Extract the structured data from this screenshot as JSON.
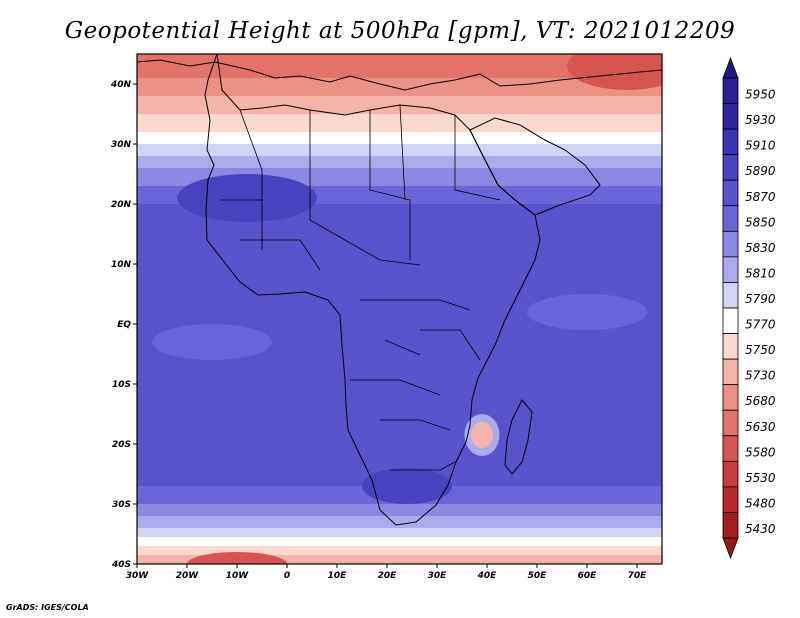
{
  "title": "Geopotential Height at 500hPa [gpm], VT: 2021012209",
  "credit": "GrADS: IGES/COLA",
  "map": {
    "lon_range": [
      -30,
      75
    ],
    "lat_range": [
      -40,
      45
    ],
    "lon_ticks": [
      {
        "value": -30,
        "label": "30W"
      },
      {
        "value": -20,
        "label": "20W"
      },
      {
        "value": -10,
        "label": "10W"
      },
      {
        "value": 0,
        "label": "0"
      },
      {
        "value": 10,
        "label": "10E"
      },
      {
        "value": 20,
        "label": "20E"
      },
      {
        "value": 30,
        "label": "30E"
      },
      {
        "value": 40,
        "label": "40E"
      },
      {
        "value": 50,
        "label": "50E"
      },
      {
        "value": 60,
        "label": "60E"
      },
      {
        "value": 70,
        "label": "70E"
      }
    ],
    "lat_ticks": [
      {
        "value": 40,
        "label": "40N"
      },
      {
        "value": 30,
        "label": "30N"
      },
      {
        "value": 20,
        "label": "20N"
      },
      {
        "value": 10,
        "label": "10N"
      },
      {
        "value": 0,
        "label": "EQ"
      },
      {
        "value": -10,
        "label": "10S"
      },
      {
        "value": -20,
        "label": "20S"
      },
      {
        "value": -30,
        "label": "30S"
      },
      {
        "value": -40,
        "label": "40S"
      }
    ],
    "field_bands": [
      {
        "lat": 45,
        "level": 5630
      },
      {
        "lat": 41,
        "level": 5680
      },
      {
        "lat": 38,
        "level": 5730
      },
      {
        "lat": 35,
        "level": 5750
      },
      {
        "lat": 32,
        "level": 5770
      },
      {
        "lat": 30,
        "level": 5790
      },
      {
        "lat": 28,
        "level": 5810
      },
      {
        "lat": 26,
        "level": 5830
      },
      {
        "lat": 23,
        "level": 5850
      },
      {
        "lat": 20,
        "level": 5870
      },
      {
        "lat": 16,
        "level": 5870
      },
      {
        "lat": 12,
        "level": 5870
      },
      {
        "lat": 6,
        "level": 5870
      },
      {
        "lat": 0,
        "level": 5870
      },
      {
        "lat": -8,
        "level": 5870
      },
      {
        "lat": -16,
        "level": 5870
      },
      {
        "lat": -22,
        "level": 5870
      },
      {
        "lat": -27,
        "level": 5850
      },
      {
        "lat": -30,
        "level": 5830
      },
      {
        "lat": -32,
        "level": 5810
      },
      {
        "lat": -34,
        "level": 5790
      },
      {
        "lat": -35.5,
        "level": 5770
      },
      {
        "lat": -37,
        "level": 5750
      },
      {
        "lat": -38.5,
        "level": 5730
      },
      {
        "lat": -40,
        "level": 5680
      }
    ],
    "features": [
      {
        "name": "North Africa heights 5890",
        "lon": -8,
        "lat": 21,
        "rx_deg": 14,
        "ry_deg": 4,
        "level": 5890
      },
      {
        "name": "Southern Africa heights 5890",
        "lon": 24,
        "lat": -27,
        "rx_deg": 9,
        "ry_deg": 3,
        "level": 5890
      },
      {
        "name": "Mozambique Channel cutoff low center",
        "lon": 39,
        "lat": -18.5,
        "rx_deg": 2.2,
        "ry_deg": 2.2,
        "level": 5730
      },
      {
        "name": "Mozambique Channel cutoff low ring",
        "lon": 39,
        "lat": -18.5,
        "rx_deg": 3.5,
        "ry_deg": 3.5,
        "level": 5810
      },
      {
        "name": "Northeast low heights",
        "lon": 68,
        "lat": 43,
        "rx_deg": 12,
        "ry_deg": 4,
        "level": 5580
      },
      {
        "name": "South Atlantic low heights",
        "lon": -10,
        "lat": -40,
        "rx_deg": 10,
        "ry_deg": 2,
        "level": 5580
      },
      {
        "name": "Equatorial Indian Ocean 5850",
        "lon": 60,
        "lat": 2,
        "rx_deg": 12,
        "ry_deg": 3,
        "level": 5850
      },
      {
        "name": "Equatorial Atlantic 5850",
        "lon": -15,
        "lat": -3,
        "rx_deg": 12,
        "ry_deg": 3,
        "level": 5850
      }
    ]
  },
  "colorbar": [
    {
      "level": 5950,
      "color": "#2a1f96"
    },
    {
      "level": 5930,
      "color": "#3025a3"
    },
    {
      "level": 5910,
      "color": "#3a35b4"
    },
    {
      "level": 5890,
      "color": "#4842c0"
    },
    {
      "level": 5870,
      "color": "#5852cd"
    },
    {
      "level": 5850,
      "color": "#6a66d9"
    },
    {
      "level": 5830,
      "color": "#8a88e3"
    },
    {
      "level": 5810,
      "color": "#ababed"
    },
    {
      "level": 5790,
      "color": "#d2d4f6"
    },
    {
      "level": 5770,
      "color": "#ffffff"
    },
    {
      "level": 5750,
      "color": "#fbd8d0"
    },
    {
      "level": 5730,
      "color": "#f5b4a9"
    },
    {
      "level": 5680,
      "color": "#ec9186"
    },
    {
      "level": 5630,
      "color": "#e2726a"
    },
    {
      "level": 5580,
      "color": "#d75551"
    },
    {
      "level": 5530,
      "color": "#ca3b3b"
    },
    {
      "level": 5480,
      "color": "#b92828"
    },
    {
      "level": 5430,
      "color": "#a51d1d"
    }
  ],
  "colorbar_top_color": "#221880",
  "colorbar_bottom_color": "#9a1616"
}
